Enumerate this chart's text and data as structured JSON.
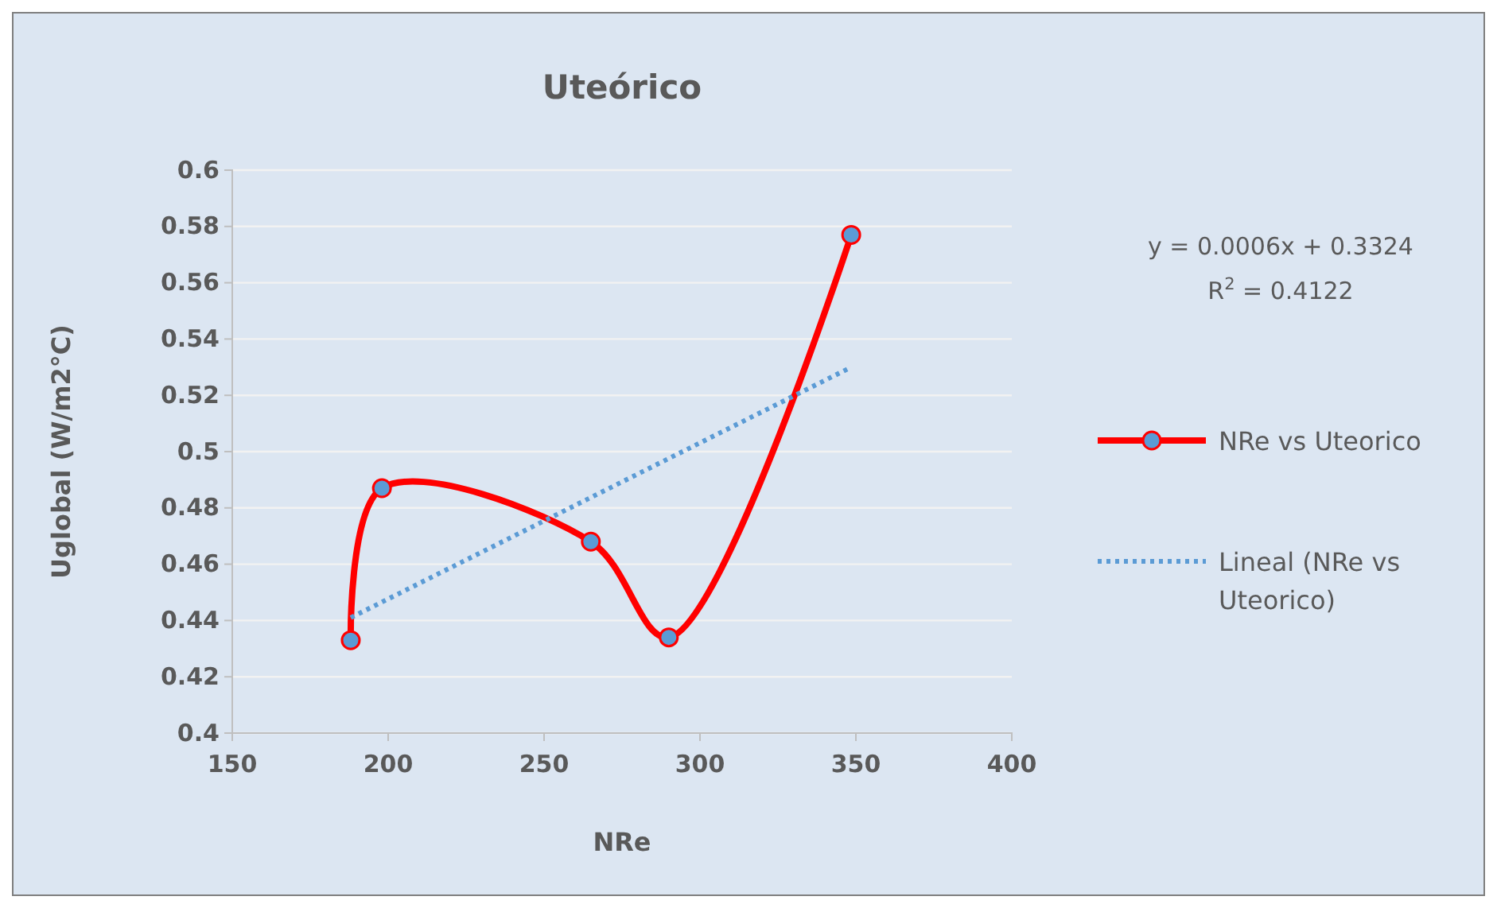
{
  "chart_data": {
    "type": "line",
    "title": "Uteórico",
    "xlabel": "NRe",
    "ylabel": "Uglobal (W/m2°C)",
    "xlim": [
      150,
      400
    ],
    "xticks": [
      150,
      200,
      250,
      300,
      350,
      400
    ],
    "ylim": [
      0.4,
      0.6
    ],
    "yticks": [
      0.4,
      0.42,
      0.44,
      0.46,
      0.48,
      0.5,
      0.52,
      0.54,
      0.56,
      0.58,
      0.6
    ],
    "grid": "y",
    "legend": "right",
    "annotations": [
      "y = 0.0006x + 0.3324",
      "R$^{2}$ = 0.4122"
    ],
    "series": [
      {
        "name": "NRe vs Uteorico",
        "color": "#ff0000",
        "marker": "circle",
        "x": [
          188,
          198,
          265,
          290,
          348.5
        ],
        "values": [
          0.433,
          0.487,
          0.468,
          0.434,
          0.577
        ]
      },
      {
        "name": "Lineal (NRe vs Uteorico)",
        "color": "#5b9bd5",
        "marker": "none",
        "line_style": "dotted",
        "x": [
          188,
          348.5
        ],
        "values": [
          0.441,
          0.53
        ]
      }
    ]
  }
}
